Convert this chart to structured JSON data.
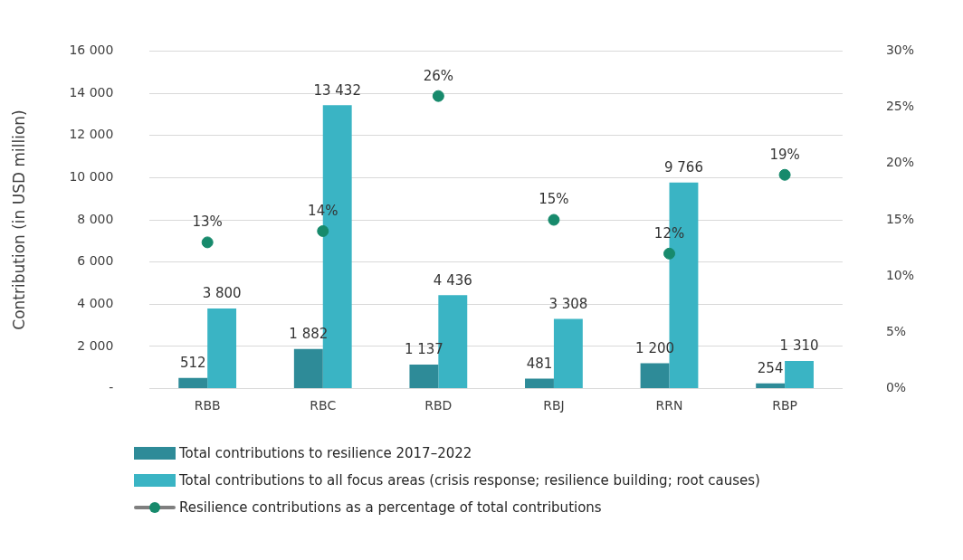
{
  "chart_data": {
    "type": "bar",
    "ylabel": "Contribution (in USD million)",
    "categories": [
      "RBB",
      "RBC",
      "RBD",
      "RBJ",
      "RRN",
      "RBP"
    ],
    "series": [
      {
        "name": "Total contributions to resilience 2017–2022",
        "color": "#2e8b98",
        "values": [
          512,
          1882,
          1137,
          481,
          1200,
          254
        ],
        "value_labels": [
          "512",
          "1 882",
          "1 137",
          "481",
          "1 200",
          "254"
        ]
      },
      {
        "name": "Total contributions to all focus areas (crisis response; resilience building; root causes)",
        "color": "#3ab4c4",
        "values": [
          3800,
          13432,
          4436,
          3308,
          9766,
          1310
        ],
        "value_labels": [
          "3 800",
          "13 432",
          "4 436",
          "3 308",
          "9 766",
          "1 310"
        ]
      },
      {
        "name": "Resilience contributions as a percentage of total contributions",
        "type": "scatter",
        "axis": "y2",
        "color": "#178a6c",
        "x": [
          "RBB",
          "RBC",
          "RBD",
          "RBJ",
          "RRN",
          "RBP"
        ],
        "values": [
          13,
          14,
          26,
          15,
          12,
          19
        ],
        "value_labels": [
          "13%",
          "14%",
          "26%",
          "15%",
          "12%",
          "19%"
        ]
      }
    ],
    "ylim": [
      0,
      16000
    ],
    "yticks": [
      {
        "value": 0,
        "label": "-"
      },
      {
        "value": 2000,
        "label": "2 000"
      },
      {
        "value": 4000,
        "label": "4 000"
      },
      {
        "value": 6000,
        "label": "6 000"
      },
      {
        "value": 8000,
        "label": "8 000"
      },
      {
        "value": 10000,
        "label": "10 000"
      },
      {
        "value": 12000,
        "label": "12 000"
      },
      {
        "value": 14000,
        "label": "14 000"
      },
      {
        "value": 16000,
        "label": "16 000"
      }
    ],
    "y2lim": [
      0,
      30
    ],
    "y2ticks": [
      {
        "value": 0,
        "label": "0%"
      },
      {
        "value": 5,
        "label": "5%"
      },
      {
        "value": 10,
        "label": "10%"
      },
      {
        "value": 15,
        "label": "15%"
      },
      {
        "value": 20,
        "label": "20%"
      },
      {
        "value": 25,
        "label": "25%"
      },
      {
        "value": 30,
        "label": "30%"
      }
    ],
    "grid": "y",
    "legend": "bottom",
    "marker": "circle"
  }
}
